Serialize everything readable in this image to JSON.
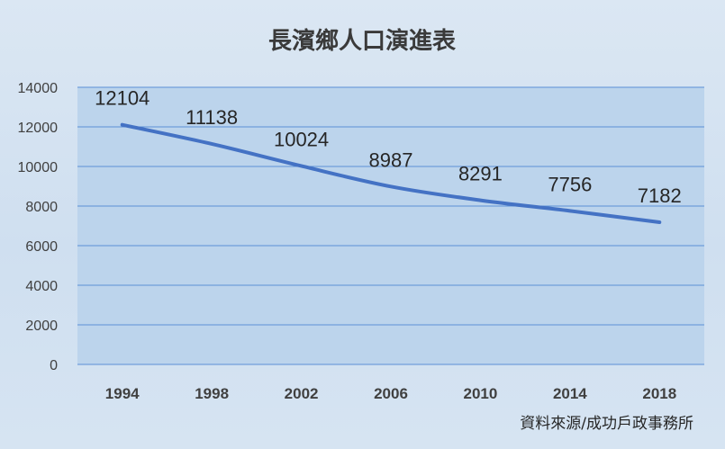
{
  "chart_data": {
    "type": "line",
    "title": "長濱鄉人口演進表",
    "x": [
      "1994",
      "1998",
      "2002",
      "2006",
      "2010",
      "2014",
      "2018"
    ],
    "series": [
      {
        "values": [
          12104,
          11138,
          10024,
          8987,
          8291,
          7756,
          7182
        ]
      }
    ],
    "data_labels": [
      "12104",
      "11138",
      "10024",
      "8987",
      "8291",
      "7756",
      "7182"
    ],
    "yticks": [
      "0",
      "2000",
      "4000",
      "6000",
      "8000",
      "10000",
      "12000",
      "14000"
    ],
    "ylim": [
      0,
      14000
    ],
    "grid": true,
    "line_color": "#4472c4",
    "plot_bg": "#bcd4ec",
    "grid_color": "#5b8fd6"
  },
  "source_note": "資料來源/成功戶政事務所"
}
